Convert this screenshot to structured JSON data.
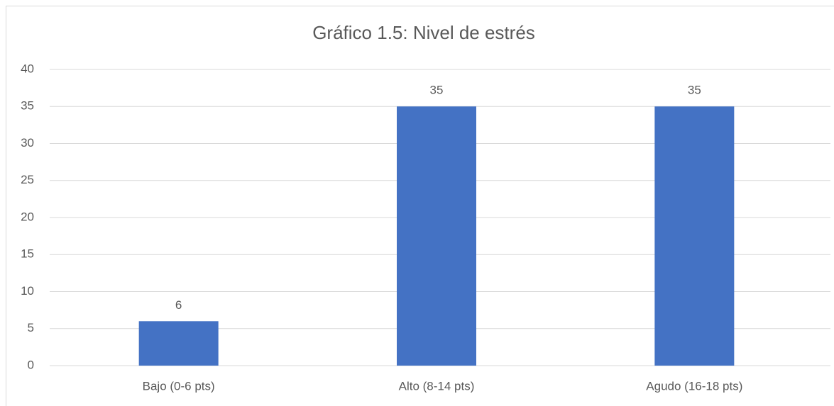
{
  "chart_data": {
    "type": "bar",
    "title": "Gráfico 1.5: Nivel de estrés",
    "categories": [
      "Bajo (0-6 pts)",
      "Alto (8-14 pts)",
      "Agudo (16-18 pts)"
    ],
    "values": [
      6,
      35,
      35
    ],
    "color": "#4472c4",
    "ylim": [
      0,
      40
    ],
    "yticks": [
      0,
      5,
      10,
      15,
      20,
      25,
      30,
      35,
      40
    ],
    "grid": true
  }
}
